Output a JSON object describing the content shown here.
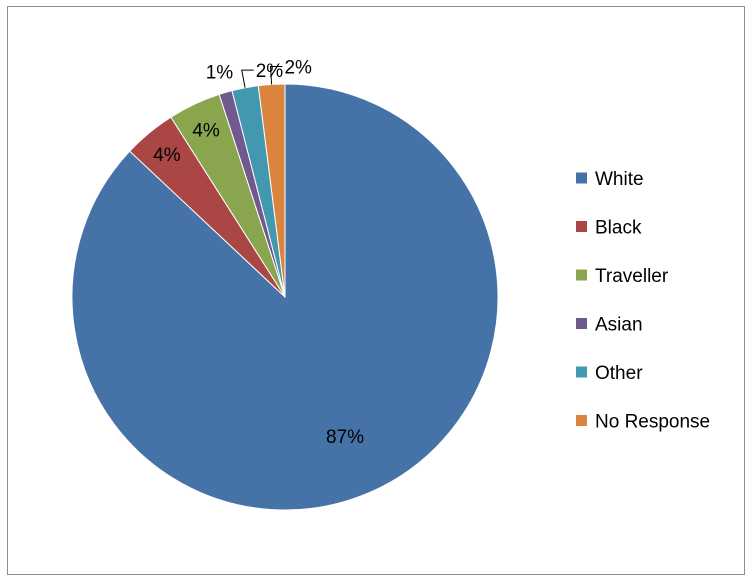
{
  "chart_data": {
    "type": "pie",
    "title": "",
    "slices": [
      {
        "name": "White",
        "value": 87,
        "label": "87%",
        "color": "#4572A7"
      },
      {
        "name": "Black",
        "value": 4,
        "label": "4%",
        "color": "#AA4643"
      },
      {
        "name": "Traveller",
        "value": 4,
        "label": "4%",
        "color": "#89A54E"
      },
      {
        "name": "Asian",
        "value": 1,
        "label": "1%",
        "color": "#71588F"
      },
      {
        "name": "Other",
        "value": 2,
        "label": "2%",
        "color": "#4198AF"
      },
      {
        "name": "No Response",
        "value": 2,
        "label": "2%",
        "color": "#DB843D"
      }
    ],
    "legend_position": "right"
  }
}
